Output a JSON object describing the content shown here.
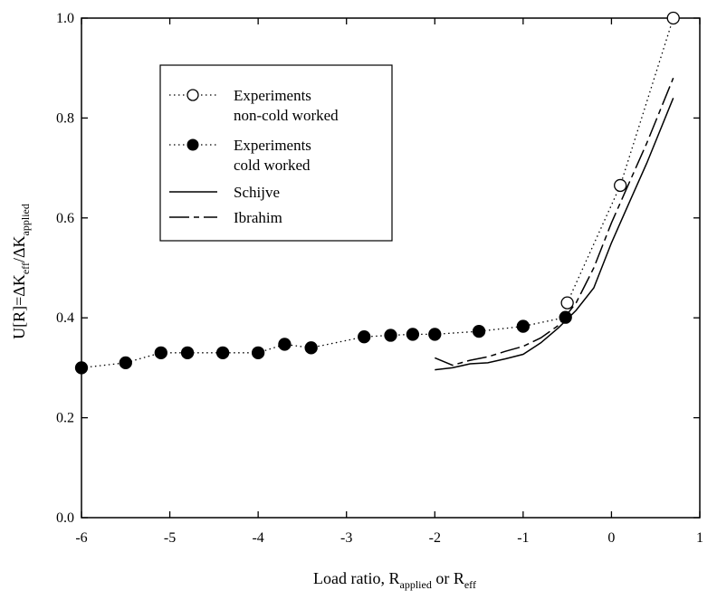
{
  "chart_data": {
    "type": "line",
    "title": "",
    "xlabel": {
      "prefix": "Load  ratio, R",
      "sub1": "applied",
      "middle": " or R",
      "sub2": "eff"
    },
    "ylabel": {
      "prefix": "U[R]=ΔK",
      "sub1": "eff",
      "middle": "/ΔK",
      "sub2": "applied"
    },
    "xlim": [
      -6,
      1
    ],
    "ylim": [
      0.0,
      1.0
    ],
    "x_ticks": [
      -6,
      -5,
      -4,
      -3,
      -2,
      -1,
      0,
      1
    ],
    "x_tick_labels": [
      "-6",
      "-5",
      "-4",
      "-3",
      "-2",
      "-1",
      "0",
      "1"
    ],
    "y_ticks": [
      0.0,
      0.2,
      0.4,
      0.6,
      0.8,
      1.0
    ],
    "y_tick_labels": [
      "0.0",
      "0.2",
      "0.4",
      "0.6",
      "0.8",
      "1.0"
    ],
    "grid": false,
    "legend_position": "upper-left",
    "series": [
      {
        "name_lines": [
          "Experiments",
          "non-cold worked"
        ],
        "style": "dotted-open-circle",
        "x": [
          -0.5,
          0.1,
          0.7
        ],
        "y": [
          0.43,
          0.665,
          1.0
        ]
      },
      {
        "name_lines": [
          "Experiments",
          "cold worked"
        ],
        "style": "dotted-filled-circle",
        "x": [
          -6.0,
          -5.5,
          -5.1,
          -4.8,
          -4.4,
          -4.0,
          -3.7,
          -3.4,
          -2.8,
          -2.5,
          -2.25,
          -2.0,
          -1.5,
          -1.0,
          -0.52
        ],
        "y": [
          0.3,
          0.31,
          0.33,
          0.33,
          0.33,
          0.33,
          0.347,
          0.34,
          0.362,
          0.365,
          0.367,
          0.367,
          0.373,
          0.383,
          0.401
        ]
      },
      {
        "name_lines": [
          "Schijve"
        ],
        "style": "solid",
        "x": [
          -2.0,
          -1.8,
          -1.6,
          -1.4,
          -1.2,
          -1.0,
          -0.8,
          -0.6,
          -0.4,
          -0.2,
          0.0,
          0.2,
          0.4,
          0.7
        ],
        "y": [
          0.296,
          0.3,
          0.308,
          0.31,
          0.318,
          0.327,
          0.35,
          0.38,
          0.415,
          0.46,
          0.55,
          0.63,
          0.71,
          0.84
        ]
      },
      {
        "name_lines": [
          "Ibrahim"
        ],
        "style": "long-dash",
        "x": [
          -2.0,
          -1.8,
          -1.6,
          -1.4,
          -1.2,
          -1.0,
          -0.8,
          -0.6,
          -0.4,
          -0.2,
          0.0,
          0.2,
          0.4,
          0.7
        ],
        "y": [
          0.32,
          0.305,
          0.315,
          0.322,
          0.333,
          0.343,
          0.36,
          0.385,
          0.43,
          0.5,
          0.59,
          0.67,
          0.75,
          0.88
        ]
      }
    ]
  }
}
